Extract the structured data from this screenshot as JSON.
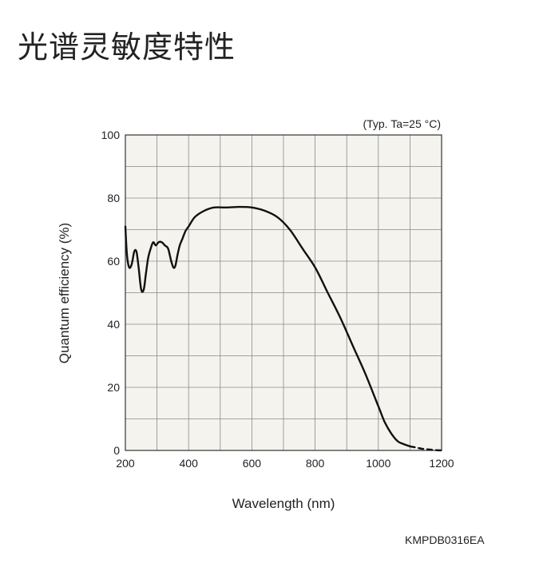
{
  "page": {
    "title": "光谱灵敏度特性",
    "figure_code": "KMPDB0316EA"
  },
  "chart_data": {
    "type": "line",
    "title": "",
    "note": "(Typ. Ta=25 °C)",
    "xlabel": "Wavelength (nm)",
    "ylabel": "Quantum efficiency (%)",
    "xlim": [
      200,
      1200
    ],
    "ylim": [
      0,
      100
    ],
    "xticks": [
      200,
      400,
      600,
      800,
      1000,
      1200
    ],
    "yticks": [
      0,
      20,
      40,
      60,
      80,
      100
    ],
    "grid": true,
    "x_minor_step": 100,
    "y_minor_step": 10,
    "plot_background": "#f5f3ee",
    "line_color": "#111111",
    "series": [
      {
        "name": "",
        "style": "solid",
        "x": [
          200,
          205,
          212,
          220,
          228,
          235,
          242,
          250,
          258,
          265,
          272,
          280,
          288,
          296,
          305,
          315,
          325,
          335,
          345,
          352,
          358,
          365,
          372,
          380,
          390,
          400,
          420,
          450,
          480,
          520,
          560,
          600,
          640,
          680,
          720,
          760,
          800,
          840,
          880,
          920,
          960,
          1000,
          1020,
          1040,
          1060,
          1080,
          1100
        ],
        "y": [
          71,
          62,
          58,
          59,
          63,
          63,
          58,
          51,
          51,
          56,
          61,
          64,
          66,
          65,
          66,
          66,
          65,
          64,
          60,
          58,
          58.5,
          62,
          65,
          67,
          69.5,
          71,
          74,
          76,
          77,
          77,
          77.2,
          77,
          76,
          74,
          70,
          64,
          58,
          50,
          42,
          33,
          24,
          14,
          9,
          5.5,
          3,
          2,
          1.3
        ]
      },
      {
        "name": "",
        "style": "dashed",
        "x": [
          1100,
          1120,
          1140,
          1160,
          1180,
          1200
        ],
        "y": [
          1.3,
          0.9,
          0.5,
          0.3,
          0.1,
          0
        ]
      }
    ]
  }
}
